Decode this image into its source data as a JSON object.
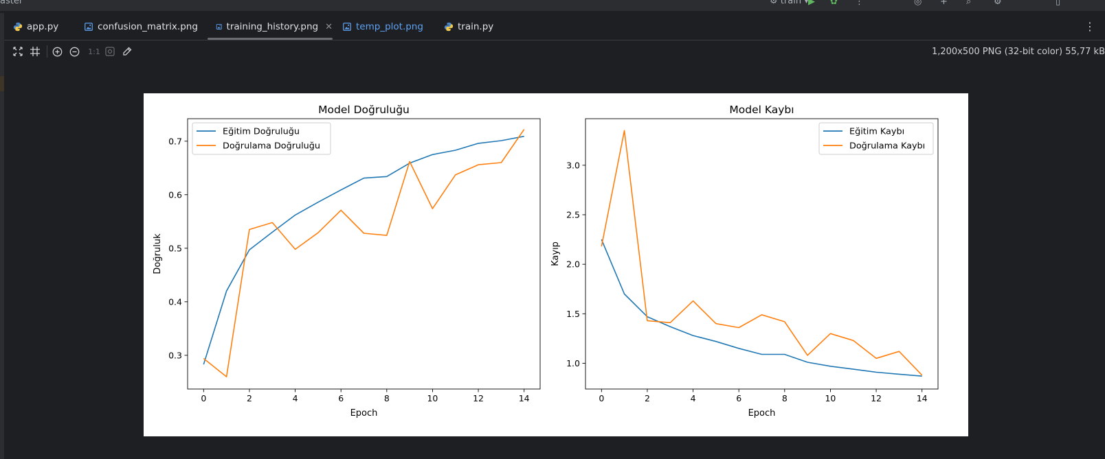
{
  "topbar": {
    "project": "aster",
    "run_config": "train"
  },
  "tabs": [
    {
      "label": "app.py",
      "icon": "python-file-icon",
      "active": false
    },
    {
      "label": "confusion_matrix.png",
      "icon": "image-file-icon",
      "active": false
    },
    {
      "label": "training_history.png",
      "icon": "image-file-icon",
      "active": true
    },
    {
      "label": "temp_plot.png",
      "icon": "image-file-icon",
      "active": false
    },
    {
      "label": "train.py",
      "icon": "python-file-icon",
      "active": false
    }
  ],
  "toolbar": {
    "actual_size_label": "1:1",
    "image_info": "1,200x500 PNG (32-bit color) 55,77 kB"
  },
  "colors": {
    "series_blue": "#1f77b4",
    "series_orange": "#ff7f0e"
  },
  "chart_data": [
    {
      "type": "line",
      "title": "Model Doğruluğu",
      "xlabel": "Epoch",
      "ylabel": "Doğruluk",
      "xlim": [
        -0.7,
        14.7
      ],
      "ylim": [
        0.237,
        0.742
      ],
      "xticks": [
        0,
        2,
        4,
        6,
        8,
        10,
        12,
        14
      ],
      "yticks": [
        0.3,
        0.4,
        0.5,
        0.6,
        0.7
      ],
      "legend_position": "top-left",
      "grid": false,
      "x": [
        0,
        1,
        2,
        3,
        4,
        5,
        6,
        7,
        8,
        9,
        10,
        11,
        12,
        13,
        14
      ],
      "series": [
        {
          "name": "Eğitim Doğruluğu",
          "color": "#1f77b4",
          "values": [
            0.283,
            0.42,
            0.497,
            0.53,
            0.562,
            0.586,
            0.609,
            0.631,
            0.634,
            0.659,
            0.675,
            0.683,
            0.696,
            0.701,
            0.709
          ]
        },
        {
          "name": "Doğrulama Doğruluğu",
          "color": "#ff7f0e",
          "values": [
            0.294,
            0.26,
            0.535,
            0.548,
            0.498,
            0.529,
            0.571,
            0.528,
            0.524,
            0.662,
            0.574,
            0.637,
            0.656,
            0.66,
            0.722
          ]
        }
      ]
    },
    {
      "type": "line",
      "title": "Model Kaybı",
      "xlabel": "Epoch",
      "ylabel": "Kayıp",
      "xlim": [
        -0.7,
        14.7
      ],
      "ylim": [
        0.74,
        3.47
      ],
      "xticks": [
        0,
        2,
        4,
        6,
        8,
        10,
        12,
        14
      ],
      "yticks": [
        1.0,
        1.5,
        2.0,
        2.5,
        3.0
      ],
      "legend_position": "top-right",
      "grid": false,
      "x": [
        0,
        1,
        2,
        3,
        4,
        5,
        6,
        7,
        8,
        9,
        10,
        11,
        12,
        13,
        14
      ],
      "series": [
        {
          "name": "Eğitim Kaybı",
          "color": "#1f77b4",
          "values": [
            2.25,
            1.7,
            1.47,
            1.37,
            1.28,
            1.22,
            1.15,
            1.09,
            1.09,
            1.01,
            0.97,
            0.94,
            0.91,
            0.89,
            0.87
          ]
        },
        {
          "name": "Doğrulama Kaybı",
          "color": "#ff7f0e",
          "values": [
            2.18,
            3.35,
            1.43,
            1.41,
            1.63,
            1.4,
            1.36,
            1.49,
            1.42,
            1.08,
            1.3,
            1.23,
            1.05,
            1.12,
            0.88
          ]
        }
      ]
    }
  ]
}
